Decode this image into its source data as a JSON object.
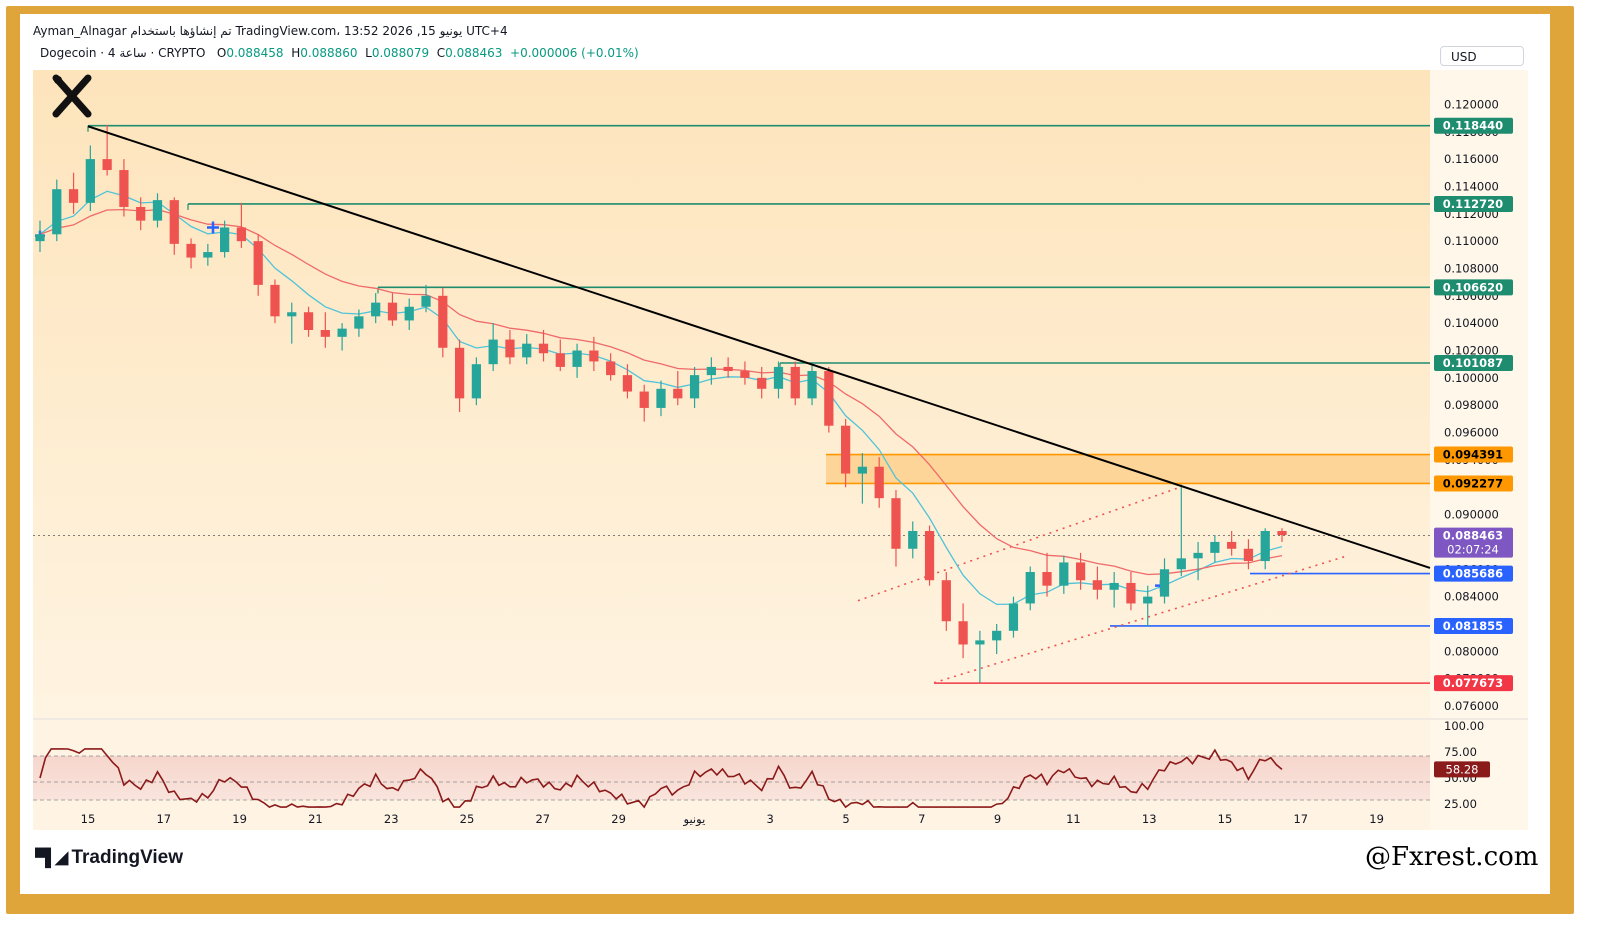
{
  "header": {
    "line1": "Ayman_Alnagar تم إنشاؤها باستخدام TradingView.com، 13:52 2026 ,15 يونيو UTC+4",
    "symbol": "Dogecoin · 4 ساعة · CRYPTO",
    "open_label": "O",
    "open": "0.088458",
    "high_label": "H",
    "high": "0.088860",
    "low_label": "L",
    "low": "0.088079",
    "close_label": "C",
    "close": "0.088463",
    "change": "+0.000006 (+0.01%)"
  },
  "currency": "USD",
  "branding": {
    "logo": "TradingView",
    "watermark": "@Fxrest.com"
  },
  "colors": {
    "bg_top": "#fde9c6",
    "bg_bottom": "#fff6e6",
    "up": "#26a69a",
    "down": "#ef5350",
    "resistance": "#1e8c6e",
    "support": "#2962ff",
    "low_line": "#f23645",
    "zone": "#ff9800",
    "ma_fast": "#4fc3d9",
    "ma_slow": "#ef6a6a",
    "trendline": "#000000",
    "price_label": "#7e57c2",
    "rsi": "#8b1a1a"
  },
  "chart_data": {
    "type": "candlestick",
    "symbol": "Dogecoin",
    "timeframe": "4h",
    "ylim": [
      0.075,
      0.1212
    ],
    "y_ticks": [
      "0.120000",
      "0.118000",
      "0.116000",
      "0.114000",
      "0.112000",
      "0.110000",
      "0.108000",
      "0.106000",
      "0.104000",
      "0.102000",
      "0.100000",
      "0.098000",
      "0.096000",
      "0.094000",
      "0.092000",
      "0.090000",
      "0.088000",
      "0.086000",
      "0.084000",
      "0.082000",
      "0.080000",
      "0.078000",
      "0.076000"
    ],
    "x_ticks": [
      "15",
      "17",
      "19",
      "21",
      "23",
      "25",
      "27",
      "29",
      "يونيو",
      "3",
      "5",
      "7",
      "9",
      "11",
      "13",
      "15",
      "17",
      "19"
    ],
    "levels": [
      {
        "value": 0.11844,
        "label": "0.118440",
        "kind": "resistance"
      },
      {
        "value": 0.11272,
        "label": "0.112720",
        "kind": "resistance"
      },
      {
        "value": 0.10662,
        "label": "0.106620",
        "kind": "resistance"
      },
      {
        "value": 0.101087,
        "label": "0.101087",
        "kind": "resistance"
      },
      {
        "value": 0.094391,
        "label": "0.094391",
        "kind": "zone"
      },
      {
        "value": 0.092277,
        "label": "0.092277",
        "kind": "zone"
      },
      {
        "value": 0.085686,
        "label": "0.085686",
        "kind": "support"
      },
      {
        "value": 0.081855,
        "label": "0.081855",
        "kind": "support"
      },
      {
        "value": 0.077673,
        "label": "0.077673",
        "kind": "low"
      }
    ],
    "current_price": {
      "value": 0.088463,
      "label": "0.088463",
      "countdown": "02:07:24"
    },
    "candles_approx": [
      [
        0.11,
        0.1115,
        0.1092,
        0.1105
      ],
      [
        0.1105,
        0.1145,
        0.11,
        0.1138
      ],
      [
        0.1138,
        0.115,
        0.112,
        0.1128
      ],
      [
        0.1128,
        0.117,
        0.1122,
        0.116
      ],
      [
        0.116,
        0.1185,
        0.1148,
        0.1152
      ],
      [
        0.1152,
        0.116,
        0.1118,
        0.1125
      ],
      [
        0.1125,
        0.1132,
        0.1108,
        0.1115
      ],
      [
        0.1115,
        0.1135,
        0.111,
        0.113
      ],
      [
        0.113,
        0.1132,
        0.109,
        0.1098
      ],
      [
        0.1098,
        0.1102,
        0.108,
        0.1088
      ],
      [
        0.1088,
        0.1098,
        0.1082,
        0.1092
      ],
      [
        0.1092,
        0.1115,
        0.1088,
        0.111
      ],
      [
        0.111,
        0.1128,
        0.1095,
        0.11
      ],
      [
        0.11,
        0.1105,
        0.106,
        0.1068
      ],
      [
        0.1068,
        0.1072,
        0.104,
        0.1045
      ],
      [
        0.1045,
        0.1055,
        0.1025,
        0.1048
      ],
      [
        0.1048,
        0.1052,
        0.103,
        0.1035
      ],
      [
        0.1035,
        0.1048,
        0.1022,
        0.103
      ],
      [
        0.103,
        0.104,
        0.102,
        0.1036
      ],
      [
        0.1036,
        0.105,
        0.103,
        0.1045
      ],
      [
        0.1045,
        0.1062,
        0.104,
        0.1055
      ],
      [
        0.1055,
        0.1062,
        0.1038,
        0.1042
      ],
      [
        0.1042,
        0.1058,
        0.1035,
        0.1052
      ],
      [
        0.1052,
        0.1068,
        0.1048,
        0.106
      ],
      [
        0.106,
        0.1066,
        0.1015,
        0.1022
      ],
      [
        0.1022,
        0.1028,
        0.0975,
        0.0985
      ],
      [
        0.0985,
        0.1015,
        0.098,
        0.101
      ],
      [
        0.101,
        0.104,
        0.1005,
        0.1028
      ],
      [
        0.1028,
        0.1035,
        0.101,
        0.1015
      ],
      [
        0.1015,
        0.1032,
        0.101,
        0.1025
      ],
      [
        0.1025,
        0.1035,
        0.1012,
        0.1018
      ],
      [
        0.1018,
        0.1028,
        0.1005,
        0.1008
      ],
      [
        0.1008,
        0.1025,
        0.1,
        0.102
      ],
      [
        0.102,
        0.103,
        0.1005,
        0.1012
      ],
      [
        0.1012,
        0.1018,
        0.0998,
        0.1002
      ],
      [
        0.1002,
        0.101,
        0.0985,
        0.099
      ],
      [
        0.099,
        0.0995,
        0.0968,
        0.0978
      ],
      [
        0.0978,
        0.0998,
        0.0972,
        0.0992
      ],
      [
        0.0992,
        0.1005,
        0.098,
        0.0985
      ],
      [
        0.0985,
        0.1008,
        0.0978,
        0.1002
      ],
      [
        0.1002,
        0.1015,
        0.0995,
        0.1008
      ],
      [
        0.1008,
        0.1015,
        0.1,
        0.1005
      ],
      [
        0.1005,
        0.1012,
        0.0995,
        0.1
      ],
      [
        0.1,
        0.1008,
        0.0985,
        0.0992
      ],
      [
        0.0992,
        0.1012,
        0.0985,
        0.1008
      ],
      [
        0.1008,
        0.1012,
        0.098,
        0.0985
      ],
      [
        0.0985,
        0.101,
        0.098,
        0.1005
      ],
      [
        0.1005,
        0.1008,
        0.096,
        0.0965
      ],
      [
        0.0965,
        0.097,
        0.092,
        0.093
      ],
      [
        0.093,
        0.0945,
        0.0908,
        0.0935
      ],
      [
        0.0935,
        0.0942,
        0.0905,
        0.0912
      ],
      [
        0.0912,
        0.0918,
        0.0862,
        0.0875
      ],
      [
        0.0875,
        0.0895,
        0.0868,
        0.0888
      ],
      [
        0.0888,
        0.0892,
        0.0848,
        0.0852
      ],
      [
        0.0852,
        0.0858,
        0.0815,
        0.0822
      ],
      [
        0.0822,
        0.0835,
        0.0795,
        0.0805
      ],
      [
        0.0805,
        0.0815,
        0.0777,
        0.0808
      ],
      [
        0.0808,
        0.082,
        0.0798,
        0.0815
      ],
      [
        0.0815,
        0.084,
        0.081,
        0.0835
      ],
      [
        0.0835,
        0.0862,
        0.083,
        0.0858
      ],
      [
        0.0858,
        0.0872,
        0.084,
        0.0848
      ],
      [
        0.0848,
        0.087,
        0.0842,
        0.0865
      ],
      [
        0.0865,
        0.0872,
        0.0845,
        0.0852
      ],
      [
        0.0852,
        0.0862,
        0.0838,
        0.0845
      ],
      [
        0.0845,
        0.0858,
        0.0832,
        0.085
      ],
      [
        0.085,
        0.0858,
        0.083,
        0.0835
      ],
      [
        0.0835,
        0.0848,
        0.0818,
        0.084
      ],
      [
        0.084,
        0.0868,
        0.0835,
        0.086
      ],
      [
        0.086,
        0.0922,
        0.0855,
        0.0868
      ],
      [
        0.0868,
        0.088,
        0.0852,
        0.0872
      ],
      [
        0.0872,
        0.0885,
        0.0865,
        0.088
      ],
      [
        0.088,
        0.0888,
        0.087,
        0.0875
      ],
      [
        0.0875,
        0.0882,
        0.086,
        0.0866
      ],
      [
        0.0866,
        0.089,
        0.086,
        0.0888
      ],
      [
        0.0888,
        0.089,
        0.088,
        0.0885
      ]
    ],
    "indicators": {
      "rsi": {
        "current": "58.28",
        "levels": [
          75,
          50,
          25
        ],
        "ticks": [
          "100.00",
          "75.00",
          "50.00",
          "25.00"
        ],
        "ylim": [
          18,
          100
        ]
      },
      "moving_averages": [
        "fast",
        "slow"
      ]
    }
  }
}
